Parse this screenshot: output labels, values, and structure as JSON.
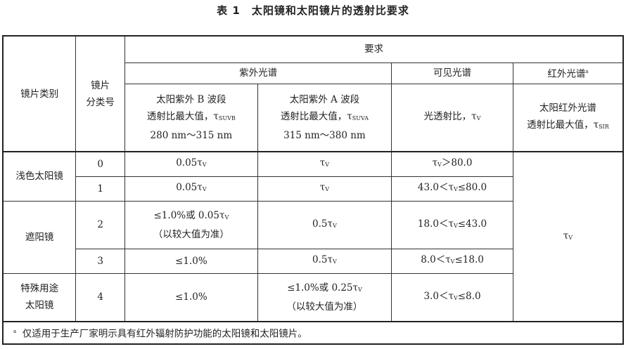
{
  "title": "表 1　太阳镜和太阳镜片的透射比要求",
  "header": {
    "category": "镜片类别",
    "class_no": "镜片\n分类号",
    "requirements": "要求",
    "uv": "紫外光谱",
    "visible": "可见光谱",
    "ir": "红外光谱",
    "ir_note_mark": "a",
    "uvb": [
      "太阳紫外 B 波段",
      "透射比最大值，τ",
      "SUVB",
      "280 nm～315 nm"
    ],
    "uva": [
      "太阳紫外 A 波段",
      "透射比最大值，τ",
      "SUVA",
      "315 nm～380 nm"
    ],
    "vis": [
      "光透射比，τ",
      "V"
    ],
    "irh": [
      "太阳红外光谱",
      "透射比最大值，τ",
      "SIR"
    ]
  },
  "groups": [
    "浅色太阳镜",
    "遮阳镜",
    "特殊用途\n太阳镜"
  ],
  "rows": [
    {
      "no": "0",
      "uvb": [
        "0.05τ",
        "V",
        ""
      ],
      "uva": [
        "τ",
        "V",
        ""
      ],
      "vis": [
        "τ",
        "V",
        "＞80.0",
        ""
      ]
    },
    {
      "no": "1",
      "uvb": [
        "0.05τ",
        "V",
        ""
      ],
      "uva": [
        "τ",
        "V",
        ""
      ],
      "vis": [
        "43.0＜τ",
        "V",
        "≤80.0",
        ""
      ]
    },
    {
      "no": "2",
      "uvb": [
        "≤1.0%或 0.05τ",
        "V",
        "（以较大值为准）"
      ],
      "uva": [
        "0.5τ",
        "V",
        ""
      ],
      "vis": [
        "18.0＜τ",
        "V",
        "≤43.0"
      ]
    },
    {
      "no": "3",
      "uvb": [
        "≤1.0%",
        "",
        ""
      ],
      "uva": [
        "0.5τ",
        "V",
        ""
      ],
      "vis": [
        "8.0＜τ",
        "V",
        "≤18.0"
      ]
    },
    {
      "no": "4",
      "uvb": [
        "≤1.0%",
        "",
        ""
      ],
      "uva": [
        "≤1.0%或 0.25τ",
        "V",
        "（以较大值为准）"
      ],
      "vis": [
        "3.0＜τ",
        "V",
        "≤8.0"
      ]
    }
  ],
  "ir_value": [
    "τ",
    "V"
  ],
  "footnote": {
    "mark": "a",
    "text": "仅适用于生产厂家明示具有红外辐射防护功能的太阳镜和太阳镜片。"
  }
}
